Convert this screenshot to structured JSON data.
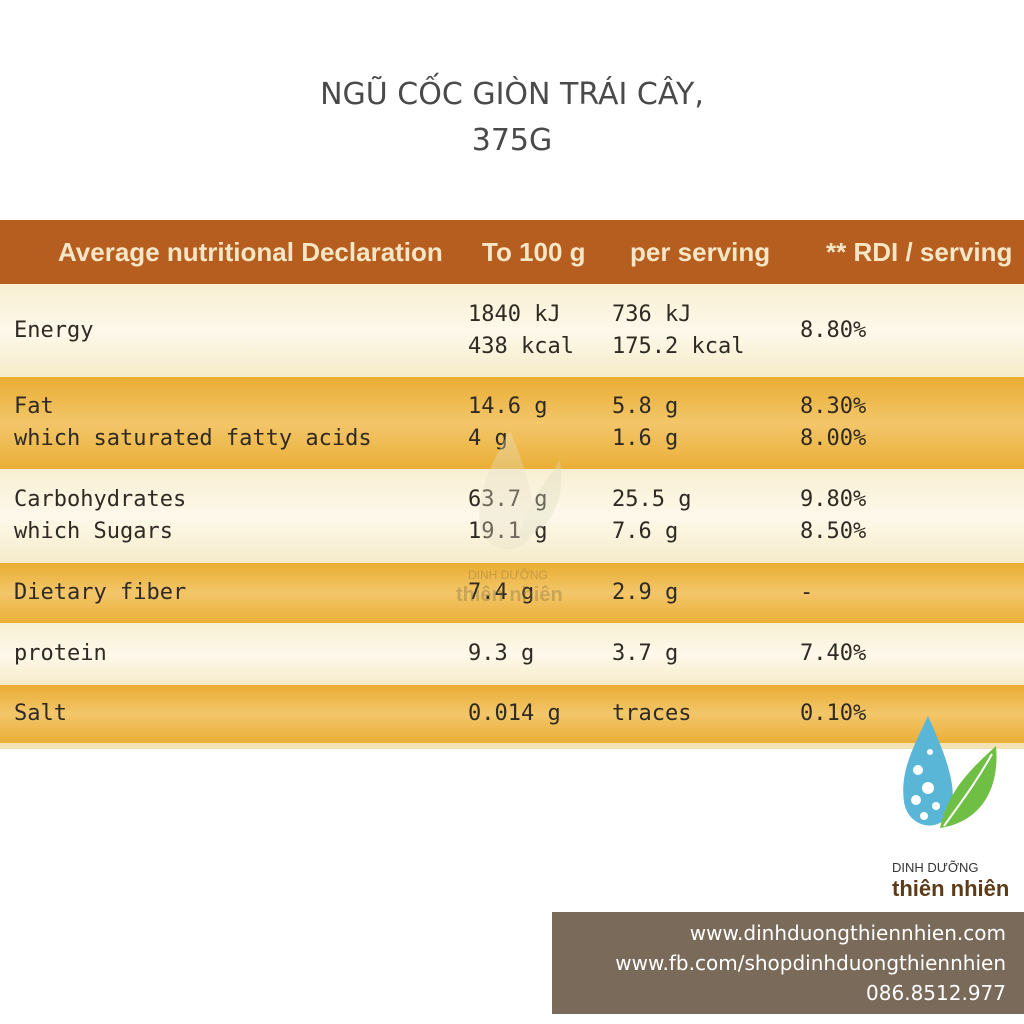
{
  "title": {
    "line1": "NGŨ CỐC GIÒN TRÁI CÂY,",
    "line2": "375G"
  },
  "table": {
    "headers": [
      "Average nutritional Declaration",
      "To 100 g",
      "per serving",
      "** RDI / serving"
    ],
    "rows": [
      {
        "name": "Energy",
        "per100": [
          "1840 kJ",
          "438 kcal"
        ],
        "serving": [
          "736 kJ",
          "175.2 kcal"
        ],
        "rdi": "8.80%"
      },
      {
        "name": "Fat",
        "sub": "which saturated fatty acids",
        "per100": [
          "14.6 g",
          "4 g"
        ],
        "serving": [
          "5.8 g",
          "1.6 g"
        ],
        "rdi": [
          "8.30%",
          "8.00%"
        ]
      },
      {
        "name": "Carbohydrates",
        "sub": "which Sugars",
        "per100": [
          "63.7 g",
          "19.1 g"
        ],
        "serving": [
          "25.5 g",
          "7.6 g"
        ],
        "rdi": [
          "9.80%",
          "8.50%"
        ]
      },
      {
        "name": "Dietary fiber",
        "per100": "7.4 g",
        "serving": "2.9 g",
        "rdi": "-"
      },
      {
        "name": "protein",
        "per100": "9.3 g",
        "serving": "3.7 g",
        "rdi": "7.40%"
      },
      {
        "name": "Salt",
        "per100": "0.014 g",
        "serving": "traces",
        "rdi": "0.10%"
      }
    ]
  },
  "watermark": {
    "line1": "DINH DƯỠNG",
    "line2": "thiên nhiên"
  },
  "logo": {
    "line1": "DINH DƯỠNG",
    "line2": "thiên nhiên",
    "icon": "water-drop-leaf-icon"
  },
  "contact": {
    "website": "www.dinhduongthiennhien.com",
    "facebook": "www.fb.com/shopdinhduongthiennhien",
    "phone": "086.8512.977"
  },
  "colors": {
    "header": "#b65d20",
    "row_dark": "#eaaf36",
    "row_light": "#fbf4df",
    "contact_bg": "#7a6a5a"
  }
}
